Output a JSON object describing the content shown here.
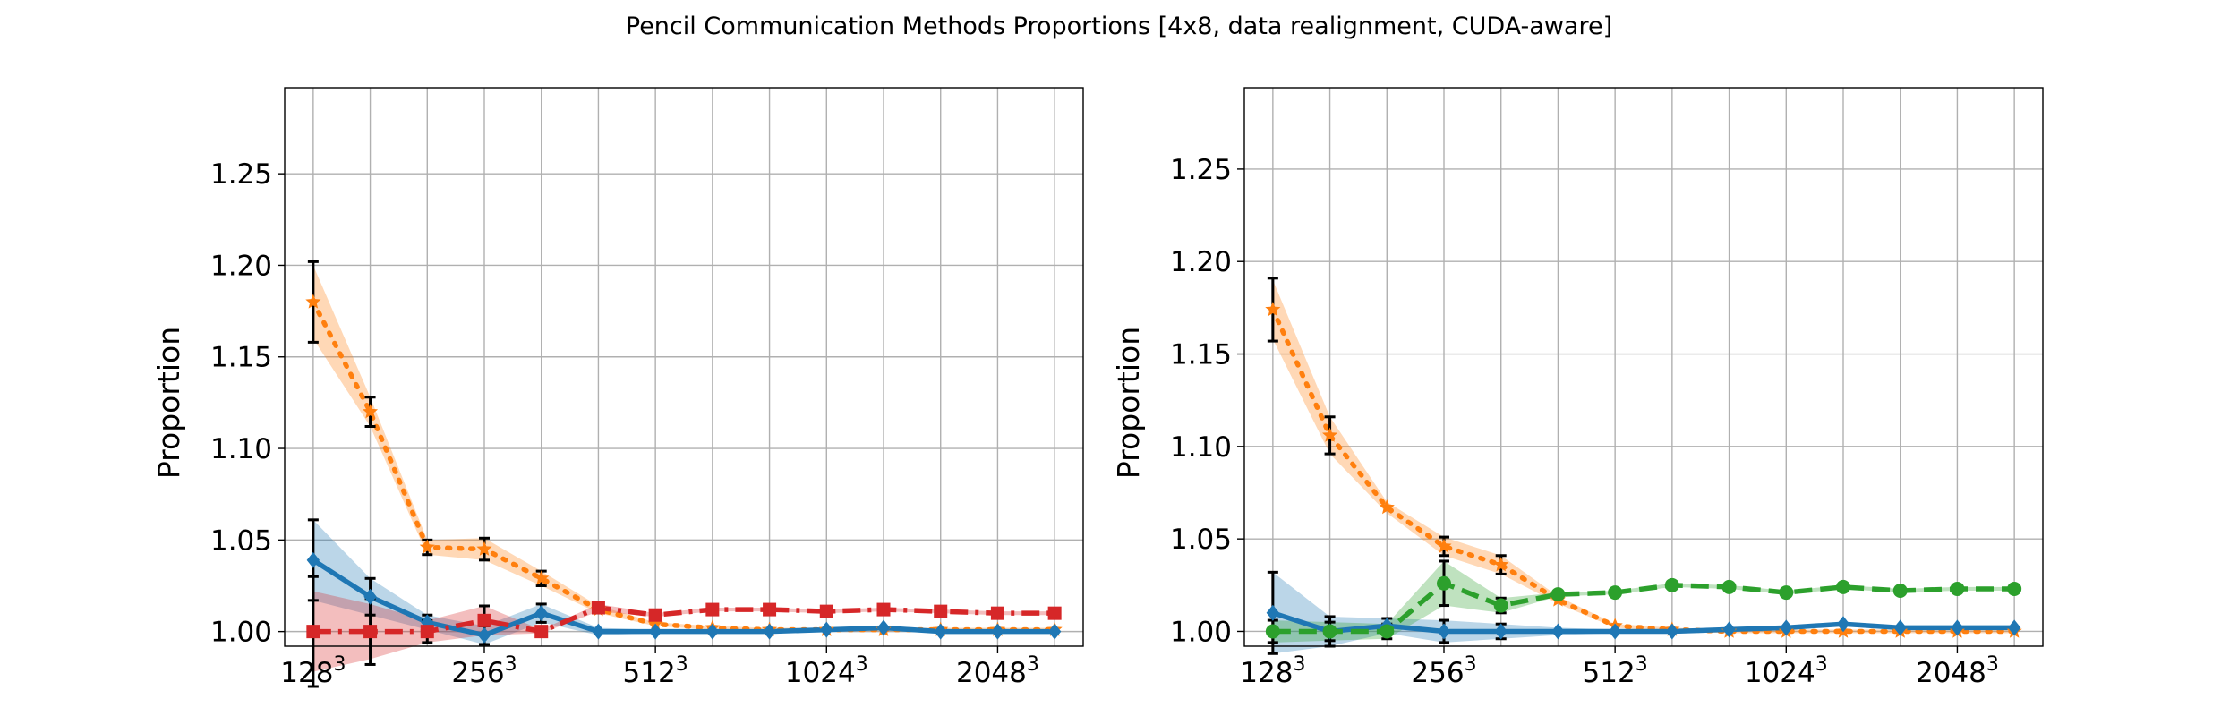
{
  "chart_data": {
    "title": "Pencil Communication Methods Proportions [4x8, data realignment, CUDA-aware]",
    "panels": [
      {
        "type": "line",
        "ylabel": "Proportion",
        "xlim": [
          -0.5,
          13.5
        ],
        "ylim": [
          0.992,
          1.297
        ],
        "yticks": [
          1.0,
          1.05,
          1.1,
          1.15,
          1.2,
          1.25
        ],
        "xtick_positions": [
          0,
          3,
          6,
          9,
          12
        ],
        "xtick_bases": [
          "128",
          "256",
          "512",
          "1024",
          "2048"
        ],
        "xtick_exp": "3",
        "series": [
          {
            "color": "#ff7f0e",
            "style": "dotted",
            "marker": "star",
            "x": [
              0,
              1,
              2,
              3,
              4,
              5,
              6,
              7,
              8,
              9,
              10,
              11,
              12,
              13
            ],
            "values": [
              1.18,
              1.12,
              1.046,
              1.045,
              1.029,
              1.012,
              1.004,
              1.002,
              1.001,
              1.001,
              1.001,
              1.001,
              1.001,
              1.001
            ],
            "band": [
              0.02,
              0.008,
              0.004,
              0.006,
              0.004,
              0.002,
              0.001,
              0.001,
              0.001,
              0.001,
              0.001,
              0.001,
              0.001,
              0.001
            ],
            "err": [
              0.022,
              0.008,
              0.004,
              0.006,
              0.004,
              0.002,
              0.001,
              0.001,
              0.001,
              0.001,
              0.001,
              0.001,
              0.001,
              0.001
            ]
          },
          {
            "color": "#1f77b4",
            "style": "solid",
            "marker": "diamond",
            "x": [
              0,
              1,
              2,
              3,
              4,
              5,
              6,
              7,
              8,
              9,
              10,
              11,
              12,
              13
            ],
            "values": [
              1.039,
              1.019,
              1.005,
              0.998,
              1.01,
              1.0,
              1.0,
              1.0,
              1.0,
              1.001,
              1.002,
              1.0,
              1.0,
              1.0
            ],
            "band": [
              0.022,
              0.01,
              0.004,
              0.005,
              0.005,
              0.002,
              0.001,
              0.001,
              0.001,
              0.001,
              0.001,
              0.001,
              0.001,
              0.001
            ],
            "err": [
              0.022,
              0.01,
              0.004,
              0.005,
              0.005,
              0.002,
              0.001,
              0.001,
              0.001,
              0.001,
              0.001,
              0.001,
              0.001,
              0.001
            ]
          },
          {
            "color": "#d62728",
            "style": "dashdot",
            "marker": "square",
            "x": [
              0,
              1,
              2,
              3,
              4,
              5,
              6,
              7,
              8,
              9,
              10,
              11,
              12,
              13
            ],
            "values": [
              1.0,
              1.0,
              1.0,
              1.006,
              1.0,
              1.013,
              1.009,
              1.012,
              1.012,
              1.011,
              1.012,
              1.011,
              1.01,
              1.01
            ],
            "band": [
              0.022,
              0.015,
              0.006,
              0.008,
              0.001,
              0.002,
              0.001,
              0.001,
              0.001,
              0.001,
              0.001,
              0.001,
              0.001,
              0.001
            ],
            "err": [
              0.03,
              0.018,
              0.006,
              0.008,
              0.001,
              0.002,
              0.001,
              0.001,
              0.001,
              0.001,
              0.001,
              0.001,
              0.001,
              0.001
            ]
          }
        ]
      },
      {
        "type": "line",
        "ylabel": "Proportion",
        "xlim": [
          -0.5,
          13.5
        ],
        "ylim": [
          0.992,
          1.294
        ],
        "yticks": [
          1.0,
          1.05,
          1.1,
          1.15,
          1.2,
          1.25
        ],
        "xtick_positions": [
          0,
          3,
          6,
          9,
          12
        ],
        "xtick_bases": [
          "128",
          "256",
          "512",
          "1024",
          "2048"
        ],
        "xtick_exp": "3",
        "series": [
          {
            "color": "#ff7f0e",
            "style": "dotted",
            "marker": "star",
            "x": [
              0,
              1,
              2,
              3,
              4,
              5,
              6,
              7,
              8,
              9,
              10,
              11,
              12,
              13
            ],
            "values": [
              1.174,
              1.106,
              1.067,
              1.046,
              1.036,
              1.017,
              1.003,
              1.001,
              1.0,
              1.0,
              1.0,
              1.0,
              1.0,
              1.0
            ],
            "band": [
              0.016,
              0.01,
              0.003,
              0.005,
              0.005,
              0.002,
              0.001,
              0.001,
              0.001,
              0.001,
              0.001,
              0.001,
              0.001,
              0.001
            ],
            "err": [
              0.017,
              0.01,
              0.003,
              0.005,
              0.005,
              0.002,
              0.001,
              0.001,
              0.001,
              0.001,
              0.001,
              0.001,
              0.001,
              0.001
            ]
          },
          {
            "color": "#1f77b4",
            "style": "solid",
            "marker": "diamond",
            "x": [
              0,
              1,
              2,
              3,
              4,
              5,
              6,
              7,
              8,
              9,
              10,
              11,
              12,
              13
            ],
            "values": [
              1.01,
              1.0,
              1.003,
              1.0,
              1.0,
              1.0,
              1.0,
              1.0,
              1.001,
              1.002,
              1.004,
              1.002,
              1.002,
              1.002
            ],
            "band": [
              0.022,
              0.008,
              0.004,
              0.006,
              0.004,
              0.002,
              0.001,
              0.001,
              0.001,
              0.001,
              0.001,
              0.001,
              0.001,
              0.001
            ],
            "err": [
              0.022,
              0.008,
              0.004,
              0.006,
              0.004,
              0.002,
              0.001,
              0.001,
              0.001,
              0.001,
              0.001,
              0.001,
              0.001,
              0.001
            ]
          },
          {
            "color": "#2ca02c",
            "style": "dashed",
            "marker": "circle",
            "x": [
              0,
              1,
              2,
              3,
              4,
              5,
              6,
              7,
              8,
              9,
              10,
              11,
              12,
              13
            ],
            "values": [
              1.0,
              1.0,
              1.0,
              1.026,
              1.014,
              1.02,
              1.021,
              1.025,
              1.024,
              1.021,
              1.024,
              1.022,
              1.023,
              1.023
            ],
            "band": [
              0.006,
              0.005,
              0.004,
              0.012,
              0.004,
              0.001,
              0.001,
              0.001,
              0.001,
              0.001,
              0.001,
              0.001,
              0.001,
              0.001
            ],
            "err": [
              0.006,
              0.005,
              0.004,
              0.012,
              0.004,
              0.001,
              0.001,
              0.001,
              0.001,
              0.001,
              0.001,
              0.001,
              0.001,
              0.001
            ]
          }
        ]
      }
    ]
  }
}
